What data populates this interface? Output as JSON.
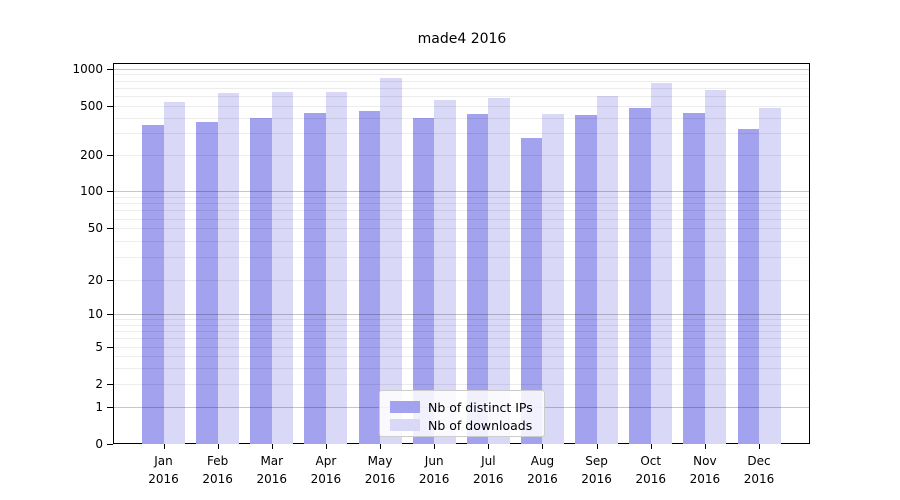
{
  "chart_data": {
    "type": "bar",
    "title": "made4 2016",
    "categories": [
      "Jan",
      "Feb",
      "Mar",
      "Apr",
      "May",
      "Jun",
      "Jul",
      "Aug",
      "Sep",
      "Oct",
      "Nov",
      "Dec"
    ],
    "category_year": "2016",
    "series": [
      {
        "name": "Nb of distinct IPs",
        "color": "#a2a2ef",
        "values": [
          345,
          370,
          395,
          435,
          450,
          395,
          430,
          275,
          420,
          480,
          440,
          320
        ]
      },
      {
        "name": "Nb of downloads",
        "color": "#d9d9f7",
        "values": [
          535,
          640,
          645,
          650,
          840,
          560,
          575,
          430,
          600,
          770,
          670,
          480
        ]
      }
    ],
    "yaxis": {
      "scale": "log-like",
      "ticks": [
        0,
        1,
        2,
        5,
        10,
        20,
        50,
        100,
        200,
        500,
        1000
      ],
      "range": [
        0,
        1000
      ]
    },
    "xaxis": {
      "tick_label_format": "month newline year"
    },
    "grid": {
      "shown": true,
      "major_lines_at": [
        1,
        10,
        100,
        1000
      ],
      "minor_lines": "2-9 of each decade"
    },
    "legend": {
      "position": "lower center",
      "entries": [
        "Nb of distinct IPs",
        "Nb of downloads"
      ]
    }
  }
}
